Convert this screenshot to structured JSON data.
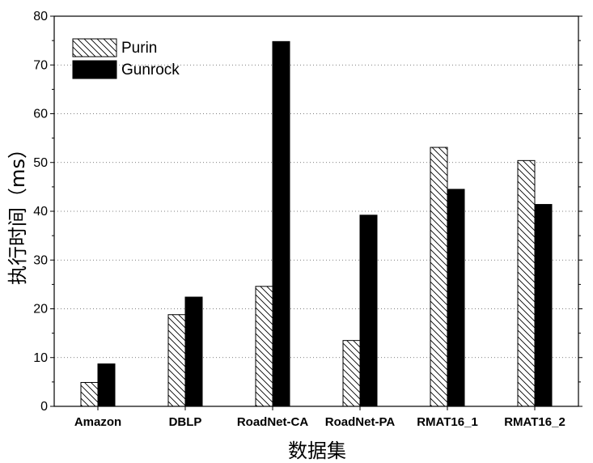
{
  "chart_data": {
    "type": "bar",
    "title": "",
    "xlabel": "数据集",
    "ylabel": "执行时间（ms）",
    "categories": [
      "Amazon",
      "DBLP",
      "RoadNet-CA",
      "RoadNet-PA",
      "RMAT16_1",
      "RMAT16_2"
    ],
    "series": [
      {
        "name": "Purin",
        "values": [
          4.9,
          18.8,
          24.6,
          13.5,
          53.1,
          50.4
        ],
        "pattern": "diagonal-hatch",
        "color": "#000000"
      },
      {
        "name": "Gunrock",
        "values": [
          8.7,
          22.4,
          74.8,
          39.2,
          44.5,
          41.4
        ],
        "pattern": "solid",
        "color": "#000000"
      }
    ],
    "ylim": [
      0,
      80
    ],
    "yticks": [
      "0",
      "10",
      "20",
      "30",
      "40",
      "50",
      "60",
      "70",
      "80"
    ],
    "grid": {
      "horizontal": true,
      "style": "dotted"
    },
    "legend": {
      "placement": "top-left"
    }
  }
}
